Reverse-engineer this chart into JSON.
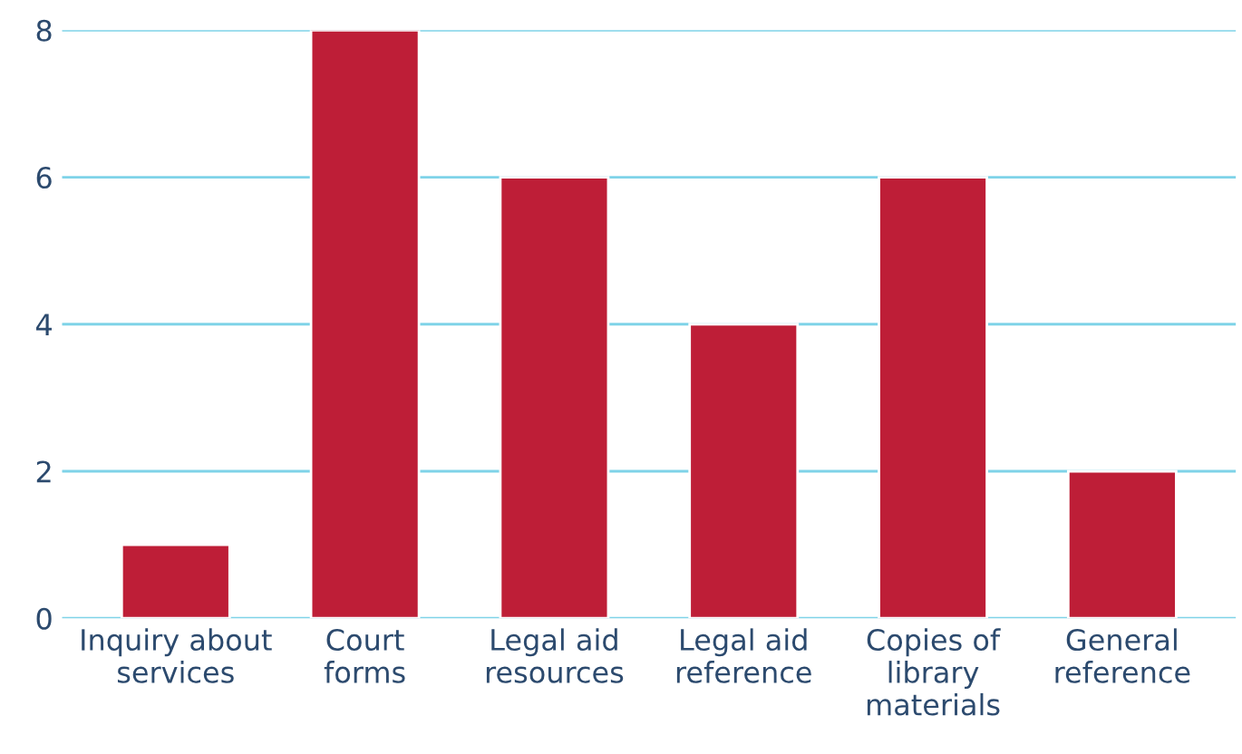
{
  "chart_data": {
    "type": "bar",
    "categories": [
      "Inquiry about\nservices",
      "Court\nforms",
      "Legal aid\nresources",
      "Legal aid\nreference",
      "Copies of\nlibrary\nmaterials",
      "General\nreference"
    ],
    "values": [
      1,
      8,
      6,
      4,
      6,
      2
    ],
    "color": "#be1e37",
    "ylim": [
      0,
      8
    ],
    "yticks": [
      0,
      2,
      4,
      6,
      8
    ],
    "grid": "y"
  }
}
